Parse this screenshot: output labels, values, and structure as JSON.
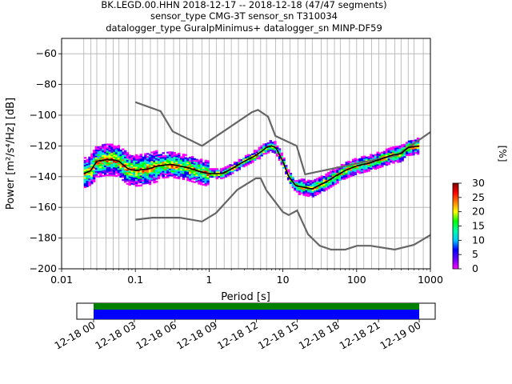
{
  "title_lines": [
    "BK.LEGD.00.HHN   2018-12-17 -- 2018-12-18  (47/47 segments)",
    "sensor_type CMG-3T sensor_sn T310034",
    "datalogger_type GuralpMinimus+ datalogger_sn MINP-DF59"
  ],
  "chart_data": {
    "type": "line",
    "xlabel": "Period [s]",
    "ylabel": "Power [m²/s⁴/Hz] [dB]",
    "x_scale": "log",
    "xlim": [
      0.01,
      1000
    ],
    "ylim": [
      -200,
      -50
    ],
    "grid": true,
    "x_tick_labels": [
      "0.01",
      "0.1",
      "1",
      "10",
      "100",
      "1000"
    ],
    "x_ticks": [
      0.01,
      0.1,
      1,
      10,
      100,
      1000
    ],
    "y_ticks": [
      -200,
      -180,
      -160,
      -140,
      -120,
      -100,
      -80,
      -60
    ],
    "period_gridlines": [
      0.02,
      0.025,
      0.03,
      0.04,
      0.05,
      0.06,
      0.08,
      0.1,
      0.125,
      0.16,
      0.2,
      0.25,
      0.33,
      0.4,
      0.5,
      0.6,
      0.8,
      1,
      1.25,
      1.6,
      2,
      2.5,
      3.3,
      4,
      5,
      6,
      8,
      10,
      12.5,
      16,
      20,
      25,
      33,
      40,
      50,
      60,
      80,
      100,
      125,
      160,
      200,
      250,
      330,
      400,
      500,
      600,
      800
    ],
    "series": [
      {
        "name": "",
        "role": "mode",
        "color": "#000000",
        "points": [
          [
            0.02,
            -138
          ],
          [
            0.025,
            -136
          ],
          [
            0.03,
            -130
          ],
          [
            0.04,
            -129
          ],
          [
            0.05,
            -129
          ],
          [
            0.06,
            -130
          ],
          [
            0.08,
            -135
          ],
          [
            0.1,
            -136
          ],
          [
            0.15,
            -135
          ],
          [
            0.2,
            -133
          ],
          [
            0.3,
            -132
          ],
          [
            0.5,
            -134
          ],
          [
            0.8,
            -137
          ],
          [
            1.0,
            -138
          ],
          [
            1.5,
            -138
          ],
          [
            2,
            -135
          ],
          [
            3,
            -130
          ],
          [
            4,
            -127
          ],
          [
            5,
            -124
          ],
          [
            6,
            -121
          ],
          [
            7,
            -120
          ],
          [
            8,
            -121
          ],
          [
            10,
            -130
          ],
          [
            12,
            -140
          ],
          [
            15,
            -146
          ],
          [
            20,
            -147
          ],
          [
            25,
            -148
          ],
          [
            30,
            -146
          ],
          [
            40,
            -143
          ],
          [
            50,
            -140
          ],
          [
            70,
            -136
          ],
          [
            100,
            -133
          ],
          [
            150,
            -131
          ],
          [
            200,
            -129
          ],
          [
            300,
            -126
          ],
          [
            400,
            -125
          ],
          [
            500,
            -121
          ],
          [
            700,
            -120
          ]
        ]
      },
      {
        "name": "",
        "role": "nhnm",
        "color": "#666666",
        "points": [
          [
            0.1,
            -91.5
          ],
          [
            0.22,
            -97.4
          ],
          [
            0.32,
            -110.5
          ],
          [
            0.8,
            -120
          ],
          [
            3.8,
            -98
          ],
          [
            4.6,
            -96.5
          ],
          [
            6.3,
            -101
          ],
          [
            7.9,
            -113.5
          ],
          [
            15.4,
            -120
          ],
          [
            20,
            -138.5
          ],
          [
            354.8,
            -126
          ],
          [
            1000,
            -111
          ]
        ]
      },
      {
        "name": "",
        "role": "nlnm",
        "color": "#666666",
        "points": [
          [
            0.1,
            -168
          ],
          [
            0.17,
            -166.7
          ],
          [
            0.4,
            -166.7
          ],
          [
            0.8,
            -169.2
          ],
          [
            1.24,
            -163.7
          ],
          [
            2.4,
            -148.6
          ],
          [
            4.3,
            -141.1
          ],
          [
            5,
            -141.1
          ],
          [
            6,
            -149
          ],
          [
            10,
            -163
          ],
          [
            12,
            -165
          ],
          [
            15.6,
            -162
          ],
          [
            21.9,
            -177.5
          ],
          [
            31.6,
            -185
          ],
          [
            45,
            -187.5
          ],
          [
            70,
            -187.5
          ],
          [
            101,
            -185
          ],
          [
            154,
            -185
          ],
          [
            328,
            -187.5
          ],
          [
            600,
            -184.4
          ],
          [
            1000,
            -178
          ]
        ]
      }
    ],
    "colorbar": {
      "label": "[%]",
      "ticks": [
        0,
        5,
        10,
        15,
        20,
        25,
        30
      ],
      "range": [
        0,
        30
      ],
      "colors": [
        "#ffffff",
        "#ff00ff",
        "#6a00ff",
        "#0000ff",
        "#00c8ff",
        "#00ffaa",
        "#00ff00",
        "#ffff00",
        "#ff8000",
        "#ff0000",
        "#800000"
      ]
    }
  },
  "timeline": {
    "tick_labels": [
      "12-18 00",
      "12-18 03",
      "12-18 06",
      "12-18 09",
      "12-18 12",
      "12-18 15",
      "12-18 18",
      "12-18 21",
      "12-19 00"
    ],
    "green_color": "#008000",
    "blue_color": "#0000ff"
  }
}
